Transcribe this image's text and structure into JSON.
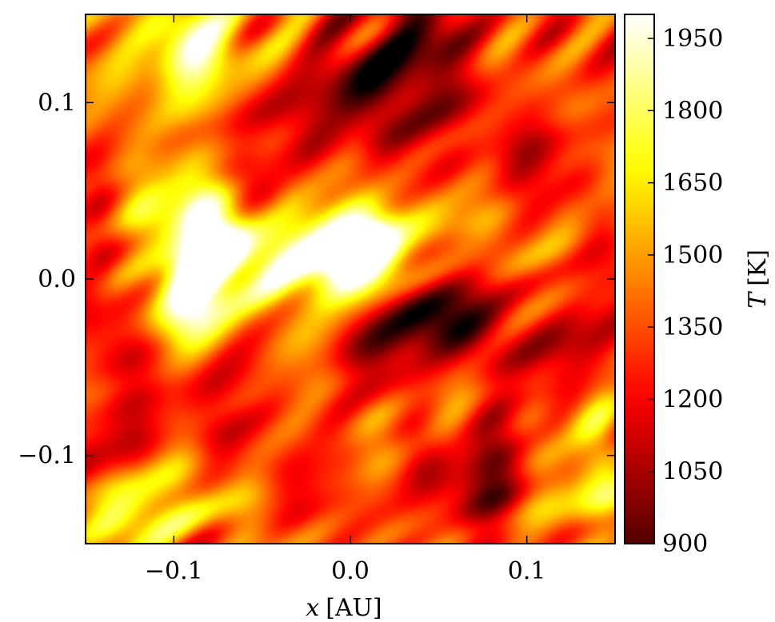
{
  "chart_data": {
    "type": "heatmap",
    "title": "",
    "xlabel_var": "x",
    "xlabel_unit": "[AU]",
    "ylabel": "",
    "xlim": [
      -0.15,
      0.15
    ],
    "ylim": [
      -0.15,
      0.15
    ],
    "x_ticks": [
      {
        "value": -0.1,
        "label": "−0.1"
      },
      {
        "value": 0.0,
        "label": "0.0"
      },
      {
        "value": 0.1,
        "label": "0.1"
      }
    ],
    "y_ticks": [
      {
        "value": 0.1,
        "label": "0.1"
      },
      {
        "value": 0.0,
        "label": "0.0"
      },
      {
        "value": -0.1,
        "label": "−0.1"
      }
    ],
    "colorbar": {
      "label_var": "T",
      "label_unit": "[K]",
      "range": [
        900,
        2000
      ],
      "colormap": "hot",
      "ticks": [
        {
          "value": 1950,
          "label": "1950"
        },
        {
          "value": 1800,
          "label": "1800"
        },
        {
          "value": 1650,
          "label": "1650"
        },
        {
          "value": 1500,
          "label": "1500"
        },
        {
          "value": 1350,
          "label": "1350"
        },
        {
          "value": 1200,
          "label": "1200"
        },
        {
          "value": 1050,
          "label": "1050"
        },
        {
          "value": 900,
          "label": "900"
        }
      ]
    },
    "background_temperature_K": 1330,
    "features": [
      {
        "x": -0.085,
        "y": 0.01,
        "T": 1990
      },
      {
        "x": -0.077,
        "y": 0.03,
        "T": 1870
      },
      {
        "x": -0.09,
        "y": -0.02,
        "T": 1830
      },
      {
        "x": -0.05,
        "y": 0.012,
        "T": 1760
      },
      {
        "x": -0.02,
        "y": 0.016,
        "T": 1760
      },
      {
        "x": 0.002,
        "y": 0.02,
        "T": 1820
      },
      {
        "x": 0.015,
        "y": 0.012,
        "T": 1760
      },
      {
        "x": -0.02,
        "y": 0.035,
        "T": 1600
      },
      {
        "x": 0.04,
        "y": 0.04,
        "T": 1550
      },
      {
        "x": -0.11,
        "y": 0.06,
        "T": 1560
      },
      {
        "x": -0.12,
        "y": 0.1,
        "T": 1500
      },
      {
        "x": -0.095,
        "y": 0.14,
        "T": 1680
      },
      {
        "x": -0.085,
        "y": 0.12,
        "T": 1580
      },
      {
        "x": -0.065,
        "y": 0.13,
        "T": 1560
      },
      {
        "x": -0.13,
        "y": -0.14,
        "T": 1650
      },
      {
        "x": -0.105,
        "y": -0.125,
        "T": 1600
      },
      {
        "x": -0.06,
        "y": -0.14,
        "T": 1550
      },
      {
        "x": 0.14,
        "y": -0.115,
        "T": 1620
      },
      {
        "x": 0.125,
        "y": -0.085,
        "T": 1480
      },
      {
        "x": 0.09,
        "y": 0.11,
        "T": 1450
      },
      {
        "x": 0.1,
        "y": 0.02,
        "T": 1420
      },
      {
        "x": 0.05,
        "y": -0.07,
        "T": 1400
      },
      {
        "x": -0.01,
        "y": -0.05,
        "T": 1420
      },
      {
        "x": -0.14,
        "y": 0.0,
        "T": 1380
      },
      {
        "x": 0.13,
        "y": 0.06,
        "T": 1380
      },
      {
        "x": -0.04,
        "y": 0.045,
        "T": 960
      },
      {
        "x": 0.045,
        "y": 0.11,
        "T": 980
      },
      {
        "x": 0.035,
        "y": -0.025,
        "T": 1000
      },
      {
        "x": 0.06,
        "y": -0.025,
        "T": 920
      },
      {
        "x": 0.01,
        "y": -0.045,
        "T": 1020
      },
      {
        "x": 0.065,
        "y": -0.12,
        "T": 1050
      },
      {
        "x": 0.02,
        "y": 0.085,
        "T": 1080
      },
      {
        "x": 0.0,
        "y": 0.12,
        "T": 1100
      },
      {
        "x": -0.02,
        "y": 0.09,
        "T": 1120
      },
      {
        "x": 0.05,
        "y": 0.14,
        "T": 1000
      },
      {
        "x": 0.11,
        "y": -0.04,
        "T": 1150
      },
      {
        "x": 0.115,
        "y": 0.06,
        "T": 1150
      },
      {
        "x": 0.085,
        "y": -0.09,
        "T": 1120
      },
      {
        "x": -0.06,
        "y": -0.1,
        "T": 1180
      },
      {
        "x": -0.12,
        "y": -0.04,
        "T": 1200
      },
      {
        "x": -0.05,
        "y": 0.1,
        "T": 1150
      },
      {
        "x": -0.13,
        "y": -0.09,
        "T": 1250
      },
      {
        "x": 0.14,
        "y": 0.13,
        "T": 1230
      }
    ]
  }
}
